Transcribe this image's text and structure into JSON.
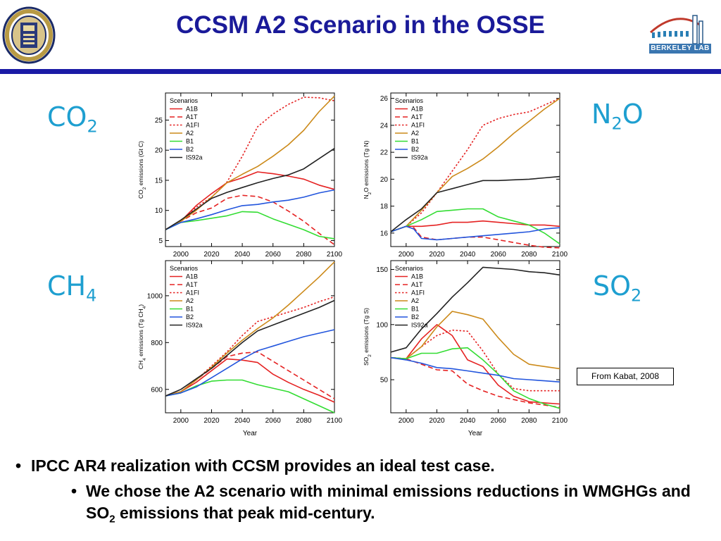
{
  "slide": {
    "title": "CCSM A2 Scenario in the OSSE",
    "source_note": "From Kabat, 2008",
    "lab_logo_text": "BERKELEY LAB",
    "bullets": {
      "marker": "•",
      "main": "IPCC AR4 realization with CCSM provides an ideal test case.",
      "sub_part1": "We chose the A2 scenario with minimal emissions reductions in WMGHGs and SO",
      "sub_part1_sub": "2",
      "sub_part2": " emissions that peak mid-century."
    }
  },
  "gas_labels": [
    {
      "text": "CO",
      "sub": "2"
    },
    {
      "text": "N",
      "sub": "2",
      "tail": "O"
    },
    {
      "text": "CH",
      "sub": "4"
    },
    {
      "text": "SO",
      "sub": "2"
    }
  ],
  "legend_title": "Scenarios",
  "colors": {
    "A1B": "#e52222",
    "A1T": "#e52222",
    "A1FI": "#e52222",
    "A2": "#cc8a1a",
    "B1": "#33dd33",
    "B2": "#2255dd",
    "IS92a": "#222222",
    "title": "#1a1a99",
    "rule": "#1a1aa5",
    "gas_label": "#1e9fd0"
  },
  "chart_data": [
    {
      "type": "line",
      "ylabel_parts": [
        [
          "CO",
          ""
        ],
        [
          "2",
          "sub"
        ],
        [
          " emissions (Gt C)",
          ""
        ]
      ],
      "xlabel": "",
      "xlim": [
        1990,
        2100
      ],
      "ylim": [
        4,
        29.5
      ],
      "xticks": [
        2000,
        2020,
        2040,
        2060,
        2080,
        2100
      ],
      "yticks": [
        5,
        10,
        15,
        20,
        25
      ],
      "legend": "top-left",
      "series": [
        {
          "name": "A1B",
          "style": "solid",
          "x": [
            1990,
            2000,
            2010,
            2020,
            2030,
            2040,
            2050,
            2060,
            2070,
            2080,
            2090,
            2100
          ],
          "y": [
            6.8,
            8.2,
            10.8,
            12.8,
            14.6,
            15.4,
            16.4,
            16.1,
            15.7,
            15.2,
            14.2,
            13.5
          ]
        },
        {
          "name": "A1T",
          "style": "dash",
          "x": [
            1990,
            2000,
            2010,
            2020,
            2030,
            2040,
            2050,
            2060,
            2070,
            2080,
            2090,
            2100
          ],
          "y": [
            6.8,
            8.2,
            9.6,
            10.4,
            12.0,
            12.5,
            12.3,
            11.4,
            9.9,
            8.2,
            6.2,
            4.3
          ]
        },
        {
          "name": "A1FI",
          "style": "dot",
          "x": [
            1990,
            2000,
            2010,
            2020,
            2030,
            2040,
            2050,
            2060,
            2070,
            2080,
            2090,
            2100
          ],
          "y": [
            6.8,
            8.2,
            10.5,
            12.2,
            14.7,
            19.0,
            23.9,
            26.0,
            27.6,
            28.8,
            28.7,
            28.2
          ]
        },
        {
          "name": "A2",
          "style": "solid",
          "x": [
            1990,
            2000,
            2010,
            2020,
            2030,
            2040,
            2050,
            2060,
            2070,
            2080,
            2090,
            2100
          ],
          "y": [
            6.8,
            8.2,
            10.0,
            12.2,
            14.6,
            16.0,
            17.3,
            19.0,
            20.9,
            23.3,
            26.4,
            29.0
          ]
        },
        {
          "name": "B1",
          "style": "solid",
          "x": [
            1990,
            2000,
            2010,
            2020,
            2030,
            2040,
            2050,
            2060,
            2070,
            2080,
            2090,
            2100
          ],
          "y": [
            6.8,
            8.0,
            8.3,
            8.7,
            9.1,
            9.8,
            9.7,
            8.6,
            7.7,
            6.8,
            5.7,
            5.3
          ]
        },
        {
          "name": "B2",
          "style": "solid",
          "x": [
            1990,
            2000,
            2010,
            2020,
            2030,
            2040,
            2050,
            2060,
            2070,
            2080,
            2090,
            2100
          ],
          "y": [
            6.8,
            8.0,
            8.6,
            9.3,
            10.1,
            10.8,
            11.0,
            11.4,
            11.7,
            12.2,
            12.9,
            13.4
          ]
        },
        {
          "name": "IS92a",
          "style": "solid",
          "x": [
            1990,
            2000,
            2010,
            2020,
            2030,
            2040,
            2050,
            2060,
            2070,
            2080,
            2090,
            2100
          ],
          "y": [
            6.8,
            8.4,
            10.2,
            12.0,
            13.0,
            13.8,
            14.6,
            15.3,
            15.9,
            16.9,
            18.6,
            20.3
          ]
        }
      ]
    },
    {
      "type": "line",
      "ylabel_parts": [
        [
          "N",
          ""
        ],
        [
          "2",
          "sub"
        ],
        [
          "O emissions (Tg N)",
          ""
        ]
      ],
      "xlabel": "",
      "xlim": [
        1990,
        2100
      ],
      "ylim": [
        15,
        26.4
      ],
      "xticks": [
        2000,
        2020,
        2040,
        2060,
        2080,
        2100
      ],
      "yticks": [
        16,
        18,
        20,
        22,
        24,
        26
      ],
      "legend": "top-left",
      "series": [
        {
          "name": "A1B",
          "style": "solid",
          "x": [
            1990,
            2000,
            2010,
            2020,
            2030,
            2040,
            2050,
            2060,
            2070,
            2080,
            2090,
            2100
          ],
          "y": [
            16.1,
            16.5,
            16.5,
            16.6,
            16.8,
            16.8,
            16.9,
            16.8,
            16.7,
            16.6,
            16.6,
            16.5
          ]
        },
        {
          "name": "A1T",
          "style": "dash",
          "x": [
            1990,
            2000,
            2005,
            2010,
            2020,
            2030,
            2040,
            2050,
            2060,
            2070,
            2080,
            2090,
            2100
          ],
          "y": [
            16.1,
            16.5,
            16.4,
            15.7,
            15.5,
            15.6,
            15.7,
            15.7,
            15.5,
            15.3,
            15.1,
            14.95,
            14.9
          ]
        },
        {
          "name": "A1FI",
          "style": "dot",
          "x": [
            1990,
            2000,
            2010,
            2020,
            2030,
            2040,
            2050,
            2060,
            2070,
            2080,
            2090,
            2100
          ],
          "y": [
            16.1,
            16.5,
            17.5,
            19.0,
            20.6,
            22.2,
            24.0,
            24.5,
            24.8,
            25.0,
            25.5,
            26.0
          ]
        },
        {
          "name": "A2",
          "style": "solid",
          "x": [
            1990,
            2000,
            2010,
            2020,
            2030,
            2040,
            2050,
            2060,
            2070,
            2080,
            2090,
            2100
          ],
          "y": [
            16.1,
            16.5,
            17.7,
            19.0,
            20.2,
            20.8,
            21.5,
            22.4,
            23.4,
            24.3,
            25.2,
            26.0
          ]
        },
        {
          "name": "B1",
          "style": "solid",
          "x": [
            1990,
            2000,
            2010,
            2020,
            2030,
            2040,
            2050,
            2060,
            2070,
            2080,
            2090,
            2100
          ],
          "y": [
            16.1,
            16.5,
            17.0,
            17.6,
            17.7,
            17.8,
            17.8,
            17.2,
            16.9,
            16.6,
            16.0,
            15.2
          ]
        },
        {
          "name": "B2",
          "style": "solid",
          "x": [
            1990,
            2000,
            2005,
            2010,
            2020,
            2030,
            2040,
            2050,
            2060,
            2070,
            2080,
            2090,
            2100
          ],
          "y": [
            16.1,
            16.5,
            16.3,
            15.6,
            15.5,
            15.6,
            15.7,
            15.8,
            15.9,
            16.0,
            16.1,
            16.3,
            16.4
          ]
        },
        {
          "name": "IS92a",
          "style": "solid",
          "x": [
            1990,
            2000,
            2010,
            2020,
            2030,
            2040,
            2050,
            2060,
            2070,
            2080,
            2090,
            2100
          ],
          "y": [
            16.1,
            17.0,
            17.8,
            19.0,
            19.3,
            19.6,
            19.9,
            19.9,
            19.95,
            20.0,
            20.1,
            20.2
          ]
        }
      ]
    },
    {
      "type": "line",
      "ylabel_parts": [
        [
          "CH",
          ""
        ],
        [
          "4",
          "sub"
        ],
        [
          " emissions (Tg CH",
          ""
        ],
        [
          "4",
          "sub"
        ],
        [
          ")",
          ""
        ]
      ],
      "xlabel": "Year",
      "xlim": [
        1990,
        2100
      ],
      "ylim": [
        500,
        1150
      ],
      "xticks": [
        2000,
        2020,
        2040,
        2060,
        2080,
        2100
      ],
      "yticks": [
        600,
        800,
        1000
      ],
      "legend": "top-left",
      "series": [
        {
          "name": "A1B",
          "style": "solid",
          "x": [
            1990,
            2000,
            2010,
            2020,
            2030,
            2040,
            2050,
            2060,
            2070,
            2080,
            2090,
            2100
          ],
          "y": [
            572,
            590,
            630,
            680,
            730,
            725,
            715,
            665,
            630,
            600,
            575,
            545
          ]
        },
        {
          "name": "A1T",
          "style": "dash",
          "x": [
            1990,
            2000,
            2010,
            2020,
            2030,
            2040,
            2050,
            2060,
            2070,
            2080,
            2090,
            2100
          ],
          "y": [
            572,
            590,
            640,
            690,
            740,
            755,
            760,
            720,
            680,
            640,
            600,
            560
          ]
        },
        {
          "name": "A1FI",
          "style": "dot",
          "x": [
            1990,
            2000,
            2010,
            2020,
            2030,
            2040,
            2050,
            2060,
            2070,
            2080,
            2090,
            2100
          ],
          "y": [
            572,
            590,
            640,
            700,
            760,
            830,
            890,
            910,
            930,
            950,
            975,
            995
          ]
        },
        {
          "name": "A2",
          "style": "solid",
          "x": [
            1990,
            2000,
            2010,
            2020,
            2030,
            2040,
            2050,
            2060,
            2070,
            2080,
            2090,
            2100
          ],
          "y": [
            572,
            590,
            640,
            695,
            755,
            810,
            860,
            905,
            960,
            1020,
            1080,
            1145
          ]
        },
        {
          "name": "B1",
          "style": "solid",
          "x": [
            1990,
            2000,
            2010,
            2020,
            2030,
            2040,
            2050,
            2060,
            2070,
            2080,
            2090,
            2100
          ],
          "y": [
            572,
            585,
            615,
            635,
            640,
            640,
            620,
            605,
            590,
            560,
            530,
            500
          ]
        },
        {
          "name": "B2",
          "style": "solid",
          "x": [
            1990,
            2000,
            2010,
            2020,
            2030,
            2040,
            2050,
            2060,
            2070,
            2080,
            2090,
            2100
          ],
          "y": [
            572,
            585,
            610,
            650,
            690,
            730,
            765,
            785,
            805,
            825,
            840,
            855
          ]
        },
        {
          "name": "IS92a",
          "style": "solid",
          "x": [
            1990,
            2000,
            2010,
            2020,
            2030,
            2040,
            2050,
            2060,
            2070,
            2080,
            2090,
            2100
          ],
          "y": [
            572,
            600,
            645,
            690,
            745,
            800,
            850,
            875,
            900,
            925,
            950,
            980
          ]
        }
      ]
    },
    {
      "type": "line",
      "ylabel_parts": [
        [
          "SO",
          ""
        ],
        [
          "2",
          "sub"
        ],
        [
          " emissions (Tg S)",
          ""
        ]
      ],
      "xlabel": "Year",
      "xlim": [
        1990,
        2100
      ],
      "ylim": [
        20,
        158
      ],
      "xticks": [
        2000,
        2020,
        2040,
        2060,
        2080,
        2100
      ],
      "yticks": [
        50,
        100,
        150
      ],
      "legend": "top-left",
      "series": [
        {
          "name": "A1B",
          "style": "solid",
          "x": [
            1990,
            2000,
            2010,
            2020,
            2030,
            2040,
            2050,
            2060,
            2070,
            2080,
            2090,
            2100
          ],
          "y": [
            70,
            69,
            87,
            100,
            90,
            68,
            62,
            45,
            35,
            30,
            29,
            28
          ]
        },
        {
          "name": "A1T",
          "style": "dash",
          "x": [
            1990,
            2000,
            2010,
            2020,
            2030,
            2040,
            2050,
            2060,
            2070,
            2080,
            2090,
            2100
          ],
          "y": [
            70,
            69,
            64,
            59,
            58,
            46,
            40,
            35,
            32,
            29,
            27,
            25
          ]
        },
        {
          "name": "A1FI",
          "style": "dot",
          "x": [
            1990,
            2000,
            2010,
            2020,
            2030,
            2040,
            2050,
            2060,
            2070,
            2080,
            2090,
            2100
          ],
          "y": [
            70,
            69,
            80,
            90,
            95,
            94,
            76,
            55,
            42,
            40,
            40,
            40
          ]
        },
        {
          "name": "A2",
          "style": "solid",
          "x": [
            1990,
            2000,
            2010,
            2020,
            2030,
            2040,
            2050,
            2060,
            2070,
            2080,
            2090,
            2100
          ],
          "y": [
            70,
            69,
            80,
            98,
            112,
            109,
            105,
            88,
            73,
            64,
            62,
            60
          ]
        },
        {
          "name": "B1",
          "style": "solid",
          "x": [
            1990,
            2000,
            2010,
            2020,
            2030,
            2040,
            2050,
            2060,
            2070,
            2080,
            2090,
            2100
          ],
          "y": [
            70,
            69,
            74,
            74,
            78,
            79,
            68,
            55,
            40,
            33,
            28,
            24
          ]
        },
        {
          "name": "B2",
          "style": "solid",
          "x": [
            1990,
            2000,
            2010,
            2020,
            2030,
            2040,
            2050,
            2060,
            2070,
            2080,
            2090,
            2100
          ],
          "y": [
            70,
            68,
            65,
            61,
            60,
            58,
            56,
            54,
            51,
            50,
            49,
            48
          ]
        },
        {
          "name": "IS92a",
          "style": "solid",
          "x": [
            1990,
            2000,
            2010,
            2020,
            2030,
            2040,
            2050,
            2060,
            2070,
            2080,
            2090,
            2100
          ],
          "y": [
            75,
            79,
            96,
            110,
            125,
            138,
            152,
            151,
            150,
            148,
            147,
            145
          ]
        }
      ]
    }
  ]
}
